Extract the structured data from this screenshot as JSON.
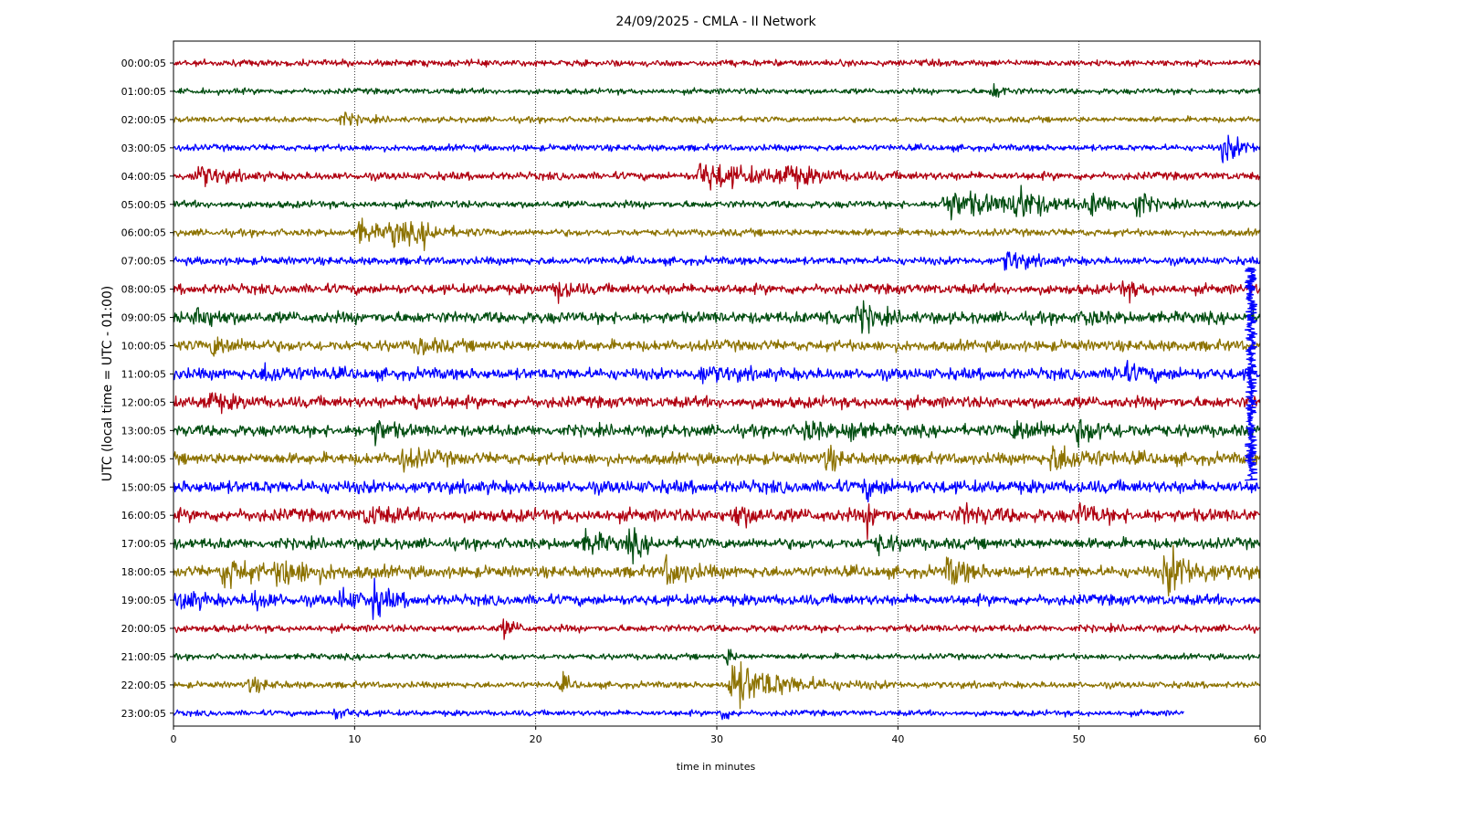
{
  "chart_data": {
    "type": "line",
    "title": "24/09/2025 - CMLA - II Network",
    "xlabel": "time in minutes",
    "ylabel": "UTC (local time = UTC - 01:00)",
    "xlim": [
      0,
      60
    ],
    "x_ticks": [
      0,
      10,
      20,
      30,
      40,
      50,
      60
    ],
    "grid": "vertical dotted lines at x = 10, 20, 30, 40, 50",
    "legend": "none",
    "trace_colors": [
      "#b00010",
      "#004d10",
      "#8c7200",
      "#0000ff"
    ],
    "rows": [
      {
        "label": "00:00:05",
        "amp": 0.9,
        "end": 60,
        "events": []
      },
      {
        "label": "01:00:05",
        "amp": 0.8,
        "end": 60,
        "events": [
          {
            "t": 45.3,
            "a": 2.2,
            "d": 0.5
          }
        ]
      },
      {
        "label": "02:00:05",
        "amp": 0.8,
        "end": 60,
        "events": [
          {
            "t": 9.3,
            "a": 1.8,
            "d": 0.8
          }
        ]
      },
      {
        "label": "03:00:05",
        "amp": 0.9,
        "end": 60,
        "events": [
          {
            "t": 58.0,
            "a": 4.0,
            "d": 1.0
          }
        ]
      },
      {
        "label": "04:00:05",
        "amp": 1.1,
        "end": 60,
        "events": [
          {
            "t": 1.3,
            "a": 3.2,
            "d": 1.2
          },
          {
            "t": 29.1,
            "a": 4.0,
            "d": 3.0
          },
          {
            "t": 33.5,
            "a": 2.5,
            "d": 1.6
          }
        ]
      },
      {
        "label": "05:00:05",
        "amp": 1.0,
        "end": 60,
        "events": [
          {
            "t": 42.5,
            "a": 4.0,
            "d": 3.5
          },
          {
            "t": 46.5,
            "a": 5.0,
            "d": 1.0
          },
          {
            "t": 50.7,
            "a": 3.0,
            "d": 1.0
          },
          {
            "t": 53.2,
            "a": 4.5,
            "d": 0.5
          }
        ]
      },
      {
        "label": "06:00:05",
        "amp": 1.0,
        "end": 60,
        "events": [
          {
            "t": 10.2,
            "a": 3.5,
            "d": 1.0
          },
          {
            "t": 12.0,
            "a": 3.5,
            "d": 1.5
          },
          {
            "t": 13.8,
            "a": 2.0,
            "d": 0.8
          }
        ]
      },
      {
        "label": "07:00:05",
        "amp": 1.1,
        "end": 60,
        "events": [
          {
            "t": 46.0,
            "a": 3.0,
            "d": 1.0
          }
        ]
      },
      {
        "label": "08:00:05",
        "amp": 1.4,
        "end": 60,
        "events": [
          {
            "t": 21.2,
            "a": 3.5,
            "d": 0.6
          },
          {
            "t": 52.5,
            "a": 2.5,
            "d": 0.6
          }
        ]
      },
      {
        "label": "09:00:05",
        "amp": 1.6,
        "end": 60,
        "events": [
          {
            "t": 1.3,
            "a": 3.0,
            "d": 1.0
          },
          {
            "t": 36.2,
            "a": 3.0,
            "d": 0.5
          },
          {
            "t": 37.9,
            "a": 4.0,
            "d": 0.8
          },
          {
            "t": 50.5,
            "a": 2.5,
            "d": 0.5
          }
        ]
      },
      {
        "label": "10:00:05",
        "amp": 1.5,
        "end": 60,
        "events": [
          {
            "t": 2.2,
            "a": 2.5,
            "d": 1.2
          },
          {
            "t": 13.5,
            "a": 2.0,
            "d": 1.0
          }
        ]
      },
      {
        "label": "11:00:05",
        "amp": 1.6,
        "end": 60,
        "events": [
          {
            "t": 5.0,
            "a": 2.0,
            "d": 1.5
          },
          {
            "t": 29.0,
            "a": 2.0,
            "d": 1.5
          },
          {
            "t": 52.0,
            "a": 2.5,
            "d": 1.5
          }
        ]
      },
      {
        "label": "12:00:05",
        "amp": 1.6,
        "end": 60,
        "events": [
          {
            "t": 1.8,
            "a": 2.8,
            "d": 1.0
          },
          {
            "t": 13.2,
            "a": 2.0,
            "d": 1.0
          }
        ]
      },
      {
        "label": "13:00:05",
        "amp": 1.6,
        "end": 60,
        "events": [
          {
            "t": 11.1,
            "a": 3.0,
            "d": 0.8
          },
          {
            "t": 34.9,
            "a": 3.0,
            "d": 0.8
          },
          {
            "t": 37.3,
            "a": 3.5,
            "d": 0.6
          },
          {
            "t": 46.5,
            "a": 2.5,
            "d": 2.0
          },
          {
            "t": 50.0,
            "a": 2.5,
            "d": 1.5
          }
        ]
      },
      {
        "label": "14:00:05",
        "amp": 1.6,
        "end": 60,
        "events": [
          {
            "t": 12.5,
            "a": 2.5,
            "d": 1.5
          },
          {
            "t": 36.1,
            "a": 3.5,
            "d": 0.5
          },
          {
            "t": 48.5,
            "a": 3.5,
            "d": 2.0
          }
        ]
      },
      {
        "label": "15:00:05",
        "amp": 1.8,
        "end": 60,
        "events": [
          {
            "t": 38.2,
            "a": 2.0,
            "d": 1.0
          }
        ]
      },
      {
        "label": "16:00:05",
        "amp": 1.8,
        "end": 60,
        "events": [
          {
            "t": 10.7,
            "a": 2.5,
            "d": 1.0
          },
          {
            "t": 31.0,
            "a": 3.0,
            "d": 1.0
          },
          {
            "t": 38.3,
            "a": 3.5,
            "d": 0.6
          },
          {
            "t": 43.5,
            "a": 2.0,
            "d": 1.5
          },
          {
            "t": 50.0,
            "a": 2.5,
            "d": 1.0
          }
        ]
      },
      {
        "label": "17:00:05",
        "amp": 1.5,
        "end": 60,
        "events": [
          {
            "t": 22.8,
            "a": 3.0,
            "d": 1.0
          },
          {
            "t": 25.2,
            "a": 3.5,
            "d": 0.7
          },
          {
            "t": 38.9,
            "a": 2.5,
            "d": 0.8
          }
        ]
      },
      {
        "label": "18:00:05",
        "amp": 1.6,
        "end": 60,
        "events": [
          {
            "t": 2.8,
            "a": 4.5,
            "d": 1.3
          },
          {
            "t": 5.8,
            "a": 3.5,
            "d": 2.0
          },
          {
            "t": 27.2,
            "a": 4.0,
            "d": 1.0
          },
          {
            "t": 42.8,
            "a": 4.0,
            "d": 1.0
          },
          {
            "t": 54.8,
            "a": 6.5,
            "d": 1.6
          }
        ]
      },
      {
        "label": "19:00:05",
        "amp": 1.5,
        "end": 60,
        "events": [
          {
            "t": 0.5,
            "a": 3.0,
            "d": 0.8
          },
          {
            "t": 4.5,
            "a": 2.5,
            "d": 0.8
          },
          {
            "t": 9.3,
            "a": 3.0,
            "d": 0.8
          },
          {
            "t": 11.0,
            "a": 4.5,
            "d": 0.8
          }
        ]
      },
      {
        "label": "20:00:05",
        "amp": 1.0,
        "end": 60,
        "events": [
          {
            "t": 18.3,
            "a": 2.8,
            "d": 0.5
          }
        ]
      },
      {
        "label": "21:00:05",
        "amp": 0.8,
        "end": 60,
        "events": [
          {
            "t": 30.6,
            "a": 2.5,
            "d": 0.3
          }
        ]
      },
      {
        "label": "22:00:05",
        "amp": 0.9,
        "end": 60,
        "events": [
          {
            "t": 4.2,
            "a": 2.0,
            "d": 0.8
          },
          {
            "t": 21.5,
            "a": 2.5,
            "d": 0.4
          },
          {
            "t": 30.8,
            "a": 7.0,
            "d": 2.5
          }
        ]
      },
      {
        "label": "23:00:05",
        "amp": 0.8,
        "end": 55.8,
        "events": [
          {
            "t": 9.0,
            "a": 1.5,
            "d": 0.8
          },
          {
            "t": 30.3,
            "a": 2.0,
            "d": 0.4
          }
        ]
      }
    ],
    "spike": {
      "row": 11,
      "t": 59.5,
      "span_rows": 7,
      "color": "#0000ff"
    }
  }
}
